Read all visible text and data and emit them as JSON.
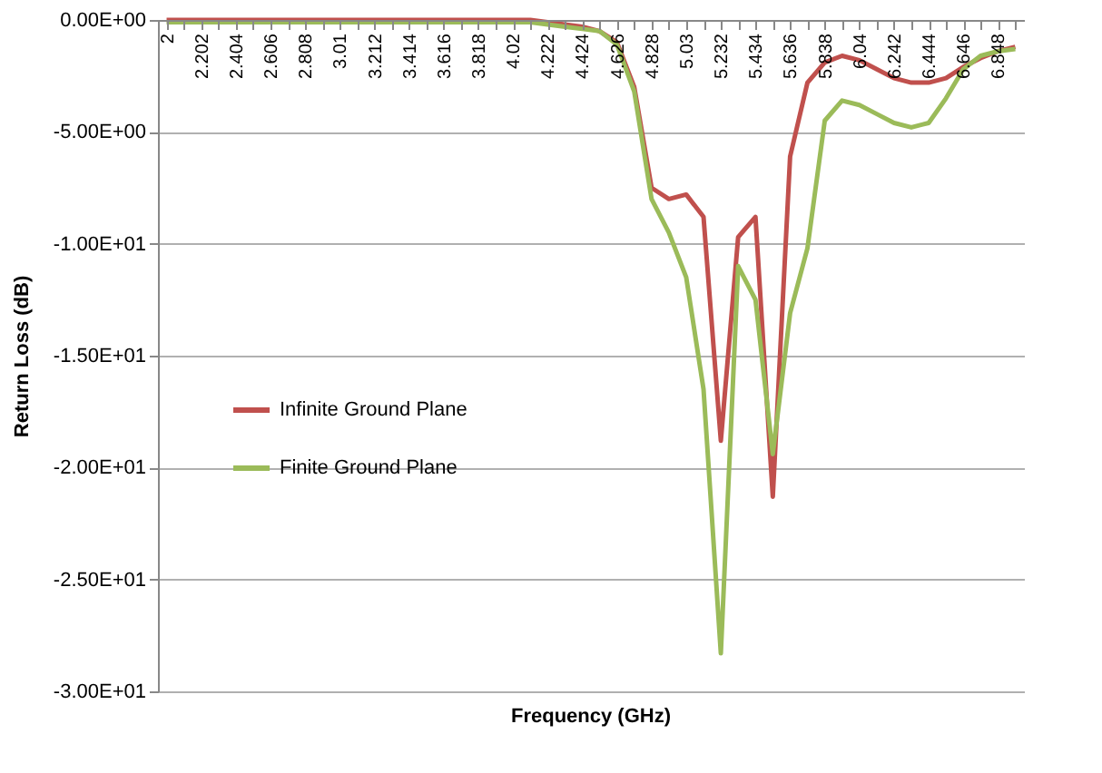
{
  "chart_data": {
    "type": "line",
    "xlabel": "Frequency (GHz)",
    "ylabel": "Return Loss  (dB)",
    "categories": [
      "2",
      null,
      "2.202",
      null,
      "2.404",
      null,
      "2.606",
      null,
      "2.808",
      null,
      "3.01",
      null,
      "3.212",
      null,
      "3.414",
      null,
      "3.616",
      null,
      "3.818",
      null,
      "4.02",
      null,
      "4.222",
      null,
      "4.424",
      null,
      "4.626",
      null,
      "4.828",
      null,
      "5.03",
      null,
      "5.232",
      null,
      "5.434",
      null,
      "5.636",
      null,
      "5.838",
      null,
      "6.04",
      null,
      "6.242",
      null,
      "6.444",
      null,
      "6.646",
      null,
      "6.848",
      null
    ],
    "series": [
      {
        "name": "Infinite Ground Plane",
        "color": "#c0504d",
        "values": [
          0,
          0,
          0,
          0,
          0,
          0,
          0,
          0,
          0,
          0,
          0,
          0,
          0,
          0,
          0,
          0,
          0,
          0,
          0,
          0,
          0,
          0,
          -0.1,
          -0.2,
          -0.3,
          -0.5,
          -1.0,
          -3.0,
          -7.5,
          -8.0,
          -7.8,
          -8.8,
          -18.8,
          -9.7,
          -8.8,
          -21.3,
          -6.1,
          -2.8,
          -1.9,
          -1.6,
          -1.8,
          -2.2,
          -2.6,
          -2.8,
          -2.8,
          -2.6,
          -2.1,
          -1.7,
          -1.4,
          -1.2
        ]
      },
      {
        "name": "Finite Ground Plane",
        "color": "#9bbb59",
        "values": [
          -0.1,
          -0.1,
          -0.1,
          -0.1,
          -0.1,
          -0.1,
          -0.1,
          -0.1,
          -0.1,
          -0.1,
          -0.1,
          -0.1,
          -0.1,
          -0.1,
          -0.1,
          -0.1,
          -0.1,
          -0.1,
          -0.1,
          -0.1,
          -0.1,
          -0.1,
          -0.2,
          -0.3,
          -0.4,
          -0.5,
          -1.1,
          -3.2,
          -8.0,
          -9.5,
          -11.5,
          -16.5,
          -28.3,
          -11.0,
          -12.5,
          -19.4,
          -13.1,
          -10.2,
          -4.5,
          -3.6,
          -3.8,
          -4.2,
          -4.6,
          -4.8,
          -4.6,
          -3.5,
          -2.2,
          -1.6,
          -1.4,
          -1.3
        ]
      }
    ],
    "ylim": [
      -30,
      0
    ],
    "yticks": [
      {
        "value": 0,
        "label": "0.00E+00"
      },
      {
        "value": -5,
        "label": "-5.00E+00"
      },
      {
        "value": -10,
        "label": "-1.00E+01"
      },
      {
        "value": -15,
        "label": "-1.50E+01"
      },
      {
        "value": -20,
        "label": "-2.00E+01"
      },
      {
        "value": -25,
        "label": "-2.50E+01"
      },
      {
        "value": -30,
        "label": "-3.00E+01"
      }
    ],
    "grid": "y",
    "legend": "left",
    "marker": "none",
    "line_style": "solid"
  }
}
